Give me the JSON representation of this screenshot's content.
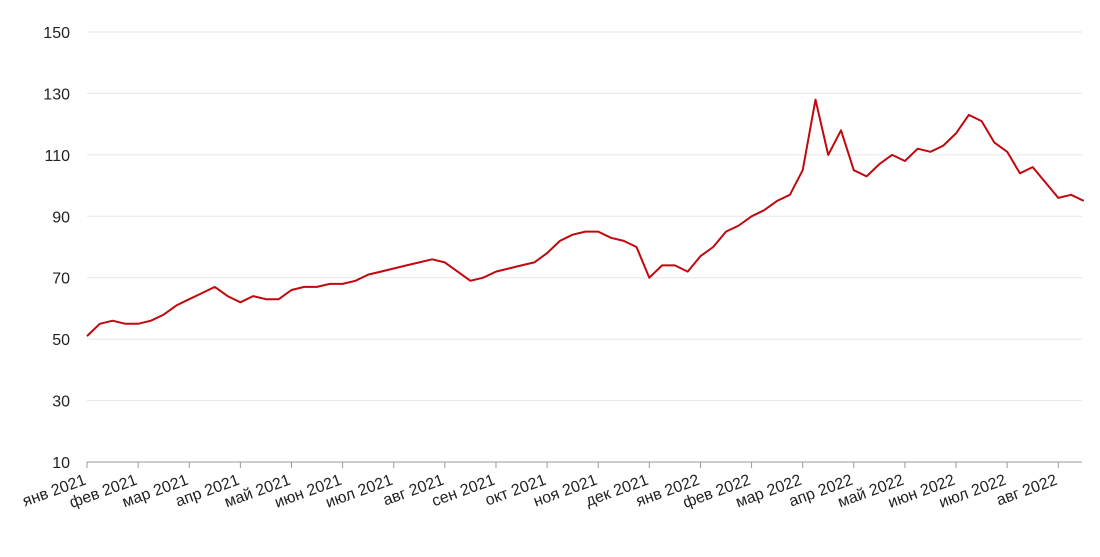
{
  "chart_data": {
    "type": "line",
    "categories": [
      "янв 2021",
      null,
      null,
      null,
      "фев 2021",
      null,
      null,
      null,
      "мар 2021",
      null,
      null,
      null,
      "апр 2021",
      null,
      null,
      null,
      "май 2021",
      null,
      null,
      null,
      "июн 2021",
      null,
      null,
      null,
      "июл 2021",
      null,
      null,
      null,
      "авг 2021",
      null,
      null,
      null,
      "сен 2021",
      null,
      null,
      null,
      "окт 2021",
      null,
      null,
      null,
      "ноя 2021",
      null,
      null,
      null,
      "дек 2021",
      null,
      null,
      null,
      "янв 2022",
      null,
      null,
      null,
      "фев 2022",
      null,
      null,
      null,
      "мар 2022",
      null,
      null,
      null,
      "апр 2022",
      null,
      null,
      null,
      "май 2022",
      null,
      null,
      null,
      "июн 2022",
      null,
      null,
      null,
      "июл 2022",
      null,
      null,
      null,
      "авг 2022",
      null,
      null
    ],
    "series": [
      {
        "color": "#c0080e",
        "values": [
          51,
          55,
          56,
          55,
          55,
          56,
          58,
          61,
          63,
          65,
          67,
          64,
          62,
          64,
          63,
          63,
          66,
          67,
          67,
          68,
          68,
          69,
          71,
          72,
          73,
          74,
          75,
          76,
          75,
          72,
          69,
          70,
          72,
          73,
          74,
          75,
          78,
          82,
          84,
          85,
          85,
          83,
          82,
          80,
          70,
          74,
          74,
          72,
          77,
          80,
          85,
          87,
          90,
          92,
          95,
          97,
          105,
          128,
          110,
          118,
          105,
          103,
          107,
          110,
          108,
          112,
          111,
          113,
          117,
          123,
          121,
          114,
          111,
          104,
          106,
          101,
          96,
          97,
          95
        ]
      }
    ],
    "ylim": [
      10,
      150
    ],
    "yticks": [
      10,
      30,
      50,
      70,
      90,
      110,
      130,
      150
    ],
    "grid": true
  }
}
